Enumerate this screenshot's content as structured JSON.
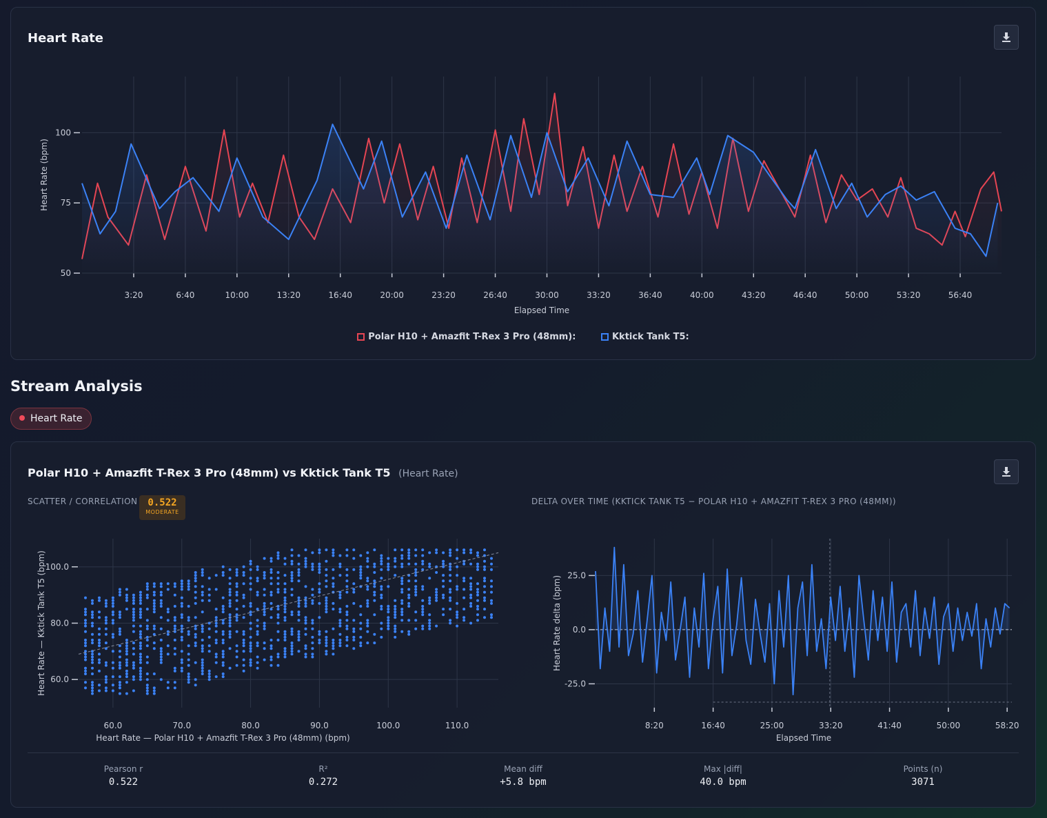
{
  "hr_chart": {
    "title": "Heart Rate",
    "download_label": "download",
    "legend": [
      "Polar H10 + Amazfit T-Rex 3 Pro (48mm):",
      "Kktick Tank T5:"
    ],
    "colors": {
      "polar": "#e64553",
      "kktick": "#3b82f6"
    }
  },
  "section": {
    "title": "Stream Analysis"
  },
  "stream_pill": {
    "label": "Heart Rate",
    "color": "#ef4b5a"
  },
  "comparison": {
    "title": "Polar H10 + Amazfit T-Rex 3 Pro (48mm) vs Kktick Tank T5",
    "subtitle": "(Heart Rate)",
    "scatter_label": "SCATTER / CORRELATION",
    "badge_value": "0.522",
    "badge_label": "MODERATE",
    "delta_label": "DELTA OVER TIME (KKTICK TANK T5 − POLAR H10 + AMAZFIT T-REX 3 PRO (48MM))",
    "stats": [
      {
        "label": "Pearson r",
        "value": "0.522"
      },
      {
        "label": "R²",
        "value": "0.272"
      },
      {
        "label": "Mean diff",
        "value": "+5.8 bpm"
      },
      {
        "label": "Max |diff|",
        "value": "40.0 bpm"
      },
      {
        "label": "Points (n)",
        "value": "3071"
      }
    ]
  },
  "chart_data": [
    {
      "type": "line",
      "title": "Heart Rate",
      "xlabel": "Elapsed Time",
      "ylabel": "Heart Rate (bpm)",
      "xlim_seconds": [
        0,
        3560
      ],
      "ylim": [
        50,
        120
      ],
      "x_ticks": [
        "3:20",
        "6:40",
        "10:00",
        "13:20",
        "16:40",
        "20:00",
        "23:20",
        "26:40",
        "30:00",
        "33:20",
        "36:40",
        "40:00",
        "43:20",
        "46:40",
        "50:00",
        "53:20",
        "56:40"
      ],
      "y_ticks": [
        50,
        75,
        100
      ],
      "grid": true,
      "legend_position": "bottom",
      "series": [
        {
          "name": "Polar H10 + Amazfit T-Rex 3 Pro (48mm):",
          "x_seconds": [
            0,
            60,
            100,
            180,
            250,
            320,
            400,
            480,
            550,
            610,
            660,
            720,
            780,
            840,
            900,
            970,
            1040,
            1110,
            1170,
            1230,
            1300,
            1360,
            1420,
            1470,
            1530,
            1600,
            1660,
            1710,
            1770,
            1830,
            1880,
            1940,
            2000,
            2060,
            2110,
            2170,
            2230,
            2290,
            2350,
            2400,
            2460,
            2520,
            2580,
            2640,
            2700,
            2760,
            2820,
            2880,
            2940,
            3000,
            3060,
            3120,
            3170,
            3230,
            3280,
            3330,
            3380,
            3420,
            3480,
            3530,
            3560
          ],
          "y": [
            55,
            82,
            70,
            60,
            85,
            62,
            88,
            65,
            101,
            70,
            82,
            68,
            92,
            70,
            62,
            80,
            68,
            98,
            75,
            96,
            69,
            88,
            66,
            91,
            68,
            101,
            72,
            105,
            78,
            114,
            74,
            95,
            66,
            92,
            72,
            88,
            70,
            96,
            71,
            86,
            66,
            98,
            72,
            90,
            80,
            70,
            92,
            68,
            85,
            76,
            80,
            70,
            84,
            66,
            64,
            60,
            72,
            63,
            80,
            86,
            72
          ]
        },
        {
          "name": "Kktick Tank T5:",
          "x_seconds": [
            0,
            70,
            130,
            190,
            300,
            360,
            430,
            530,
            600,
            700,
            800,
            910,
            970,
            1090,
            1160,
            1240,
            1330,
            1410,
            1490,
            1580,
            1660,
            1740,
            1800,
            1880,
            1960,
            2040,
            2110,
            2200,
            2290,
            2380,
            2430,
            2500,
            2600,
            2660,
            2730,
            2760,
            2840,
            2920,
            2980,
            3040,
            3110,
            3170,
            3230,
            3300,
            3380,
            3440,
            3500,
            3545
          ],
          "y": [
            82,
            64,
            72,
            96,
            73,
            79,
            84,
            72,
            91,
            70,
            62,
            83,
            103,
            80,
            97,
            70,
            86,
            66,
            92,
            69,
            99,
            77,
            100,
            79,
            91,
            74,
            97,
            78,
            77,
            91,
            78,
            99,
            93,
            85,
            76,
            73,
            94,
            73,
            82,
            70,
            78,
            81,
            76,
            79,
            66,
            64,
            56,
            75
          ]
        }
      ]
    },
    {
      "type": "scatter",
      "title": "SCATTER / CORRELATION",
      "xlabel": "Heart Rate — Polar H10 + Amazfit T-Rex 3 Pro (48mm) (bpm)",
      "ylabel": "Heart Rate — Kktick Tank T5 (bpm)",
      "xlim": [
        55,
        116
      ],
      "ylim": [
        50,
        110
      ],
      "x_ticks": [
        60.0,
        70.0,
        80.0,
        90.0,
        100.0,
        110.0
      ],
      "y_ticks": [
        60.0,
        80.0,
        100.0
      ],
      "grid": true,
      "pearson_r": 0.522,
      "trendline": {
        "x": [
          55,
          116
        ],
        "y": [
          69,
          105
        ]
      },
      "points_n": 3071
    },
    {
      "type": "line",
      "title": "DELTA OVER TIME (KKTICK TANK T5 − POLAR H10 + AMAZFIT T-REX 3 PRO (48MM))",
      "xlabel": "Elapsed Time",
      "ylabel": "Heart Rate delta (bpm)",
      "xlim_seconds": [
        0,
        3540
      ],
      "ylim": [
        -36,
        42
      ],
      "x_ticks": [
        "8:20",
        "16:40",
        "25:00",
        "33:20",
        "41:40",
        "50:00",
        "58:20"
      ],
      "y_ticks": [
        25.0,
        0.0,
        -25.0
      ],
      "grid": true,
      "zero_line": true,
      "series": [
        {
          "name": "delta",
          "x_seconds": [
            0,
            40,
            80,
            120,
            160,
            200,
            240,
            280,
            320,
            360,
            400,
            440,
            480,
            520,
            560,
            600,
            640,
            680,
            720,
            760,
            800,
            840,
            880,
            920,
            960,
            1000,
            1040,
            1080,
            1120,
            1160,
            1200,
            1240,
            1280,
            1320,
            1360,
            1400,
            1440,
            1480,
            1520,
            1560,
            1600,
            1640,
            1680,
            1720,
            1760,
            1800,
            1840,
            1880,
            1920,
            1960,
            2000,
            2040,
            2080,
            2120,
            2160,
            2200,
            2240,
            2280,
            2320,
            2360,
            2400,
            2440,
            2480,
            2520,
            2560,
            2600,
            2640,
            2680,
            2720,
            2760,
            2800,
            2840,
            2880,
            2920,
            2960,
            3000,
            3040,
            3080,
            3120,
            3160,
            3200,
            3240,
            3280,
            3320,
            3360,
            3400,
            3440,
            3480,
            3520
          ],
          "y": [
            27,
            -18,
            10,
            -10,
            38,
            -8,
            30,
            -12,
            -2,
            18,
            -15,
            5,
            25,
            -20,
            8,
            -5,
            22,
            -14,
            0,
            15,
            -22,
            10,
            -8,
            26,
            -18,
            5,
            20,
            -20,
            28,
            -12,
            2,
            24,
            -5,
            -16,
            14,
            -2,
            -15,
            12,
            -25,
            18,
            -8,
            25,
            -30,
            10,
            22,
            -12,
            30,
            -10,
            5,
            -18,
            15,
            -5,
            20,
            -10,
            10,
            -22,
            25,
            5,
            -14,
            18,
            -5,
            15,
            -10,
            22,
            -15,
            8,
            12,
            -8,
            18,
            -12,
            10,
            -4,
            15,
            -16,
            6,
            12,
            -10,
            10,
            -5,
            8,
            -3,
            12,
            -18,
            5,
            -8,
            10,
            -2,
            12,
            10
          ]
        }
      ]
    }
  ]
}
